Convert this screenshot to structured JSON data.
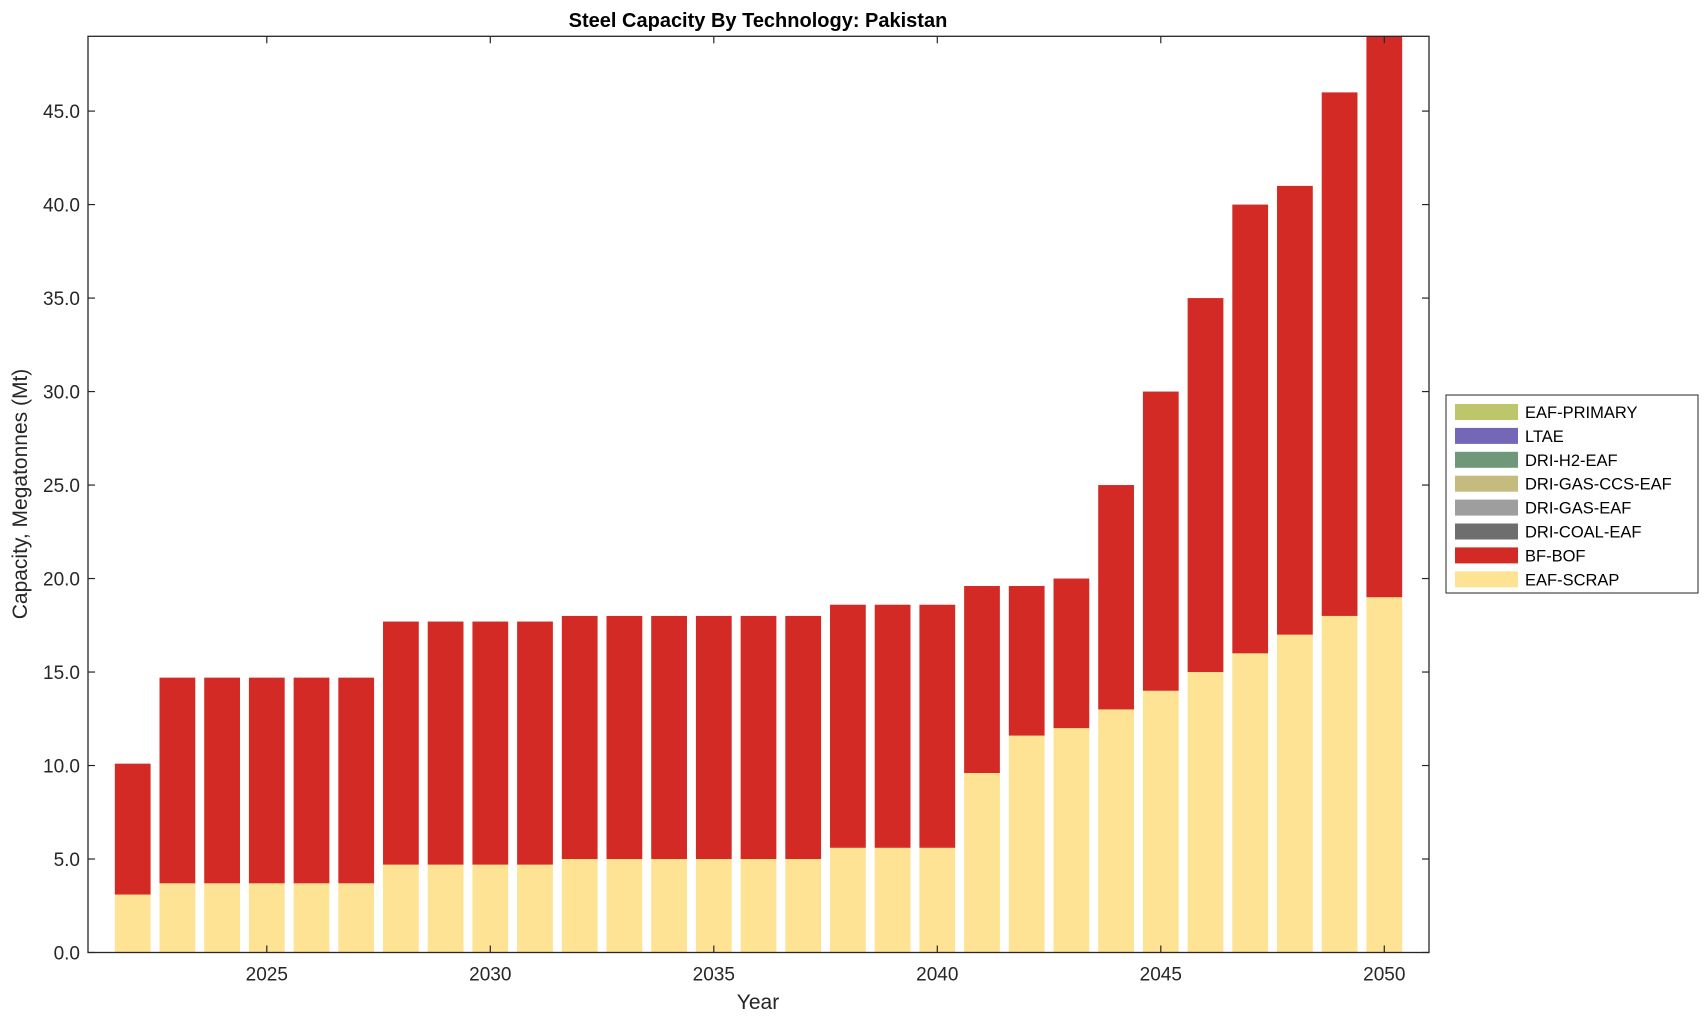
{
  "chart_data": {
    "type": "bar",
    "stacked": true,
    "title": "Steel Capacity By Technology: Pakistan",
    "xlabel": "Year",
    "ylabel": "Capacity, Megatonnes (Mt)",
    "xlim": [
      2021,
      2051
    ],
    "ylim": [
      0,
      49
    ],
    "grid": false,
    "legend_position": "outside-right",
    "x": [
      2022,
      2023,
      2024,
      2025,
      2026,
      2027,
      2028,
      2029,
      2030,
      2031,
      2032,
      2033,
      2034,
      2035,
      2036,
      2037,
      2038,
      2039,
      2040,
      2041,
      2042,
      2043,
      2044,
      2045,
      2046,
      2047,
      2048,
      2049,
      2050
    ],
    "xticks": [
      2025,
      2030,
      2035,
      2040,
      2045,
      2050
    ],
    "xtick_labels": [
      "2025",
      "2030",
      "2035",
      "2040",
      "2045",
      "2050"
    ],
    "yticks": [
      0,
      5,
      10,
      15,
      20,
      25,
      30,
      35,
      40,
      45
    ],
    "ytick_labels": [
      "0.0",
      "5.0",
      "10.0",
      "15.0",
      "20.0",
      "25.0",
      "30.0",
      "35.0",
      "40.0",
      "45.0"
    ],
    "series": [
      {
        "name": "EAF-SCRAP",
        "color": "#fde393",
        "values": [
          3.1,
          3.7,
          3.7,
          3.7,
          3.7,
          3.7,
          4.7,
          4.7,
          4.7,
          4.7,
          5.0,
          5.0,
          5.0,
          5.0,
          5.0,
          5.0,
          5.6,
          5.6,
          5.6,
          9.6,
          11.6,
          12.0,
          13.0,
          14.0,
          15.0,
          16.0,
          17.0,
          18.0,
          19.0
        ]
      },
      {
        "name": "BF-BOF",
        "color": "#d32a25",
        "values": [
          7.0,
          11.0,
          11.0,
          11.0,
          11.0,
          11.0,
          13.0,
          13.0,
          13.0,
          13.0,
          13.0,
          13.0,
          13.0,
          13.0,
          13.0,
          13.0,
          13.0,
          13.0,
          13.0,
          10.0,
          8.0,
          8.0,
          12.0,
          16.0,
          20.0,
          24.0,
          24.0,
          28.0,
          30.0
        ]
      },
      {
        "name": "DRI-COAL-EAF",
        "color": "#6e6e6e",
        "values": [
          0,
          0,
          0,
          0,
          0,
          0,
          0,
          0,
          0,
          0,
          0,
          0,
          0,
          0,
          0,
          0,
          0,
          0,
          0,
          0,
          0,
          0,
          0,
          0,
          0,
          0,
          0,
          0,
          0
        ]
      },
      {
        "name": "DRI-GAS-EAF",
        "color": "#9e9e9e",
        "values": [
          0,
          0,
          0,
          0,
          0,
          0,
          0,
          0,
          0,
          0,
          0,
          0,
          0,
          0,
          0,
          0,
          0,
          0,
          0,
          0,
          0,
          0,
          0,
          0,
          0,
          0,
          0,
          0,
          0
        ]
      },
      {
        "name": "DRI-GAS-CCS-EAF",
        "color": "#c5bb7e",
        "values": [
          0,
          0,
          0,
          0,
          0,
          0,
          0,
          0,
          0,
          0,
          0,
          0,
          0,
          0,
          0,
          0,
          0,
          0,
          0,
          0,
          0,
          0,
          0,
          0,
          0,
          0,
          0,
          0,
          0
        ]
      },
      {
        "name": "DRI-H2-EAF",
        "color": "#6f977a",
        "values": [
          0,
          0,
          0,
          0,
          0,
          0,
          0,
          0,
          0,
          0,
          0,
          0,
          0,
          0,
          0,
          0,
          0,
          0,
          0,
          0,
          0,
          0,
          0,
          0,
          0,
          0,
          0,
          0,
          0
        ]
      },
      {
        "name": "LTAE",
        "color": "#7367b6",
        "values": [
          0,
          0,
          0,
          0,
          0,
          0,
          0,
          0,
          0,
          0,
          0,
          0,
          0,
          0,
          0,
          0,
          0,
          0,
          0,
          0,
          0,
          0,
          0,
          0,
          0,
          0,
          0,
          0,
          0
        ]
      },
      {
        "name": "EAF-PRIMARY",
        "color": "#bdc66a",
        "values": [
          0,
          0,
          0,
          0,
          0,
          0,
          0,
          0,
          0,
          0,
          0,
          0,
          0,
          0,
          0,
          0,
          0,
          0,
          0,
          0,
          0,
          0,
          0,
          0,
          0,
          0,
          0,
          0,
          0
        ]
      }
    ],
    "legend": [
      "EAF-PRIMARY",
      "LTAE",
      "DRI-H2-EAF",
      "DRI-GAS-CCS-EAF",
      "DRI-GAS-EAF",
      "DRI-COAL-EAF",
      "BF-BOF",
      "EAF-SCRAP"
    ]
  }
}
